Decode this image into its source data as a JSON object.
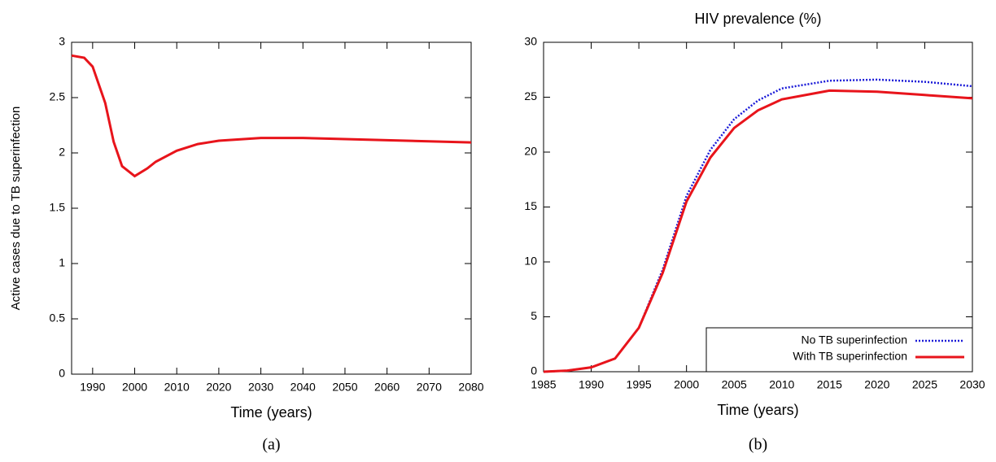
{
  "chart_data": [
    {
      "type": "line",
      "caption": "(a)",
      "y_label": "Active cases due to TB superinfection",
      "x_label": "Time (years)",
      "x": [
        1985,
        1988,
        1990,
        1993,
        1995,
        1997,
        2000,
        2003,
        2005,
        2010,
        2015,
        2020,
        2030,
        2040,
        2050,
        2060,
        2070,
        2080
      ],
      "series": [
        {
          "color": "#e8141b",
          "linestyle": "solid",
          "values": [
            2.88,
            2.86,
            2.78,
            2.45,
            2.1,
            1.88,
            1.79,
            1.86,
            1.92,
            2.02,
            2.08,
            2.11,
            2.135,
            2.135,
            2.125,
            2.115,
            2.105,
            2.095
          ]
        }
      ],
      "xlim": [
        1985,
        2080
      ],
      "xticks": [
        1990,
        2000,
        2010,
        2020,
        2030,
        2040,
        2050,
        2060,
        2070,
        2080
      ],
      "ylim": [
        0,
        3
      ],
      "yticks": [
        0,
        0.5,
        1,
        1.5,
        2,
        2.5,
        3
      ]
    },
    {
      "type": "line",
      "caption": "(b)",
      "title": "HIV prevalence (%)",
      "x_label": "Time (years)",
      "x": [
        1985,
        1987.5,
        1990,
        1992.5,
        1995,
        1997.5,
        2000,
        2002.5,
        2005,
        2007.5,
        2010,
        2015,
        2020,
        2025,
        2030
      ],
      "series": [
        {
          "name": "No TB superinfection",
          "color": "#1a1ad8",
          "linestyle": "dotted",
          "values": [
            0,
            0.1,
            0.4,
            1.2,
            4,
            9.3,
            16,
            20.2,
            23,
            24.7,
            25.8,
            26.5,
            26.6,
            26.4,
            26.0
          ]
        },
        {
          "name": "With TB superinfection",
          "color": "#e8141b",
          "linestyle": "solid",
          "values": [
            0,
            0.1,
            0.4,
            1.2,
            4,
            9,
            15.5,
            19.5,
            22.2,
            23.8,
            24.8,
            25.6,
            25.5,
            25.2,
            24.9
          ]
        }
      ],
      "xlim": [
        1985,
        2030
      ],
      "xticks": [
        1985,
        1990,
        1995,
        2000,
        2005,
        2010,
        2015,
        2020,
        2025,
        2030
      ],
      "ylim": [
        0,
        30
      ],
      "yticks": [
        0,
        5,
        10,
        15,
        20,
        25,
        30
      ],
      "legend": "lower right"
    }
  ]
}
